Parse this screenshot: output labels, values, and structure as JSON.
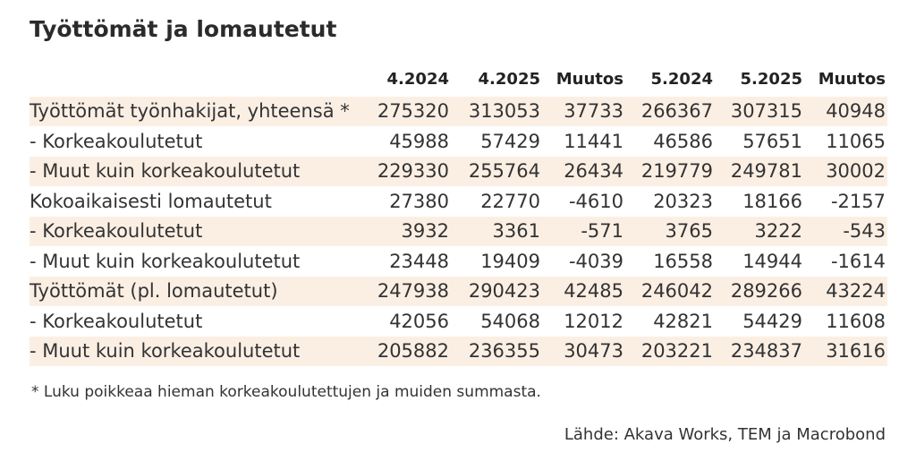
{
  "title": "Työttömät ja lomautetut",
  "table": {
    "columns": [
      "4.2024",
      "4.2025",
      "Muutos",
      "5.2024",
      "5.2025",
      "Muutos"
    ],
    "rows": [
      [
        "Työttömät työnhakijat, yhteensä *",
        275320,
        313053,
        37733,
        266367,
        307315,
        40948
      ],
      [
        "- Korkeakoulutetut",
        45988,
        57429,
        11441,
        46586,
        57651,
        11065
      ],
      [
        "- Muut kuin korkeakoulutetut",
        229330,
        255764,
        26434,
        219779,
        249781,
        30002
      ],
      [
        "Kokoaikaisesti lomautetut",
        27380,
        22770,
        -4610,
        20323,
        18166,
        -2157
      ],
      [
        "- Korkeakoulutetut",
        3932,
        3361,
        -571,
        3765,
        3222,
        -543
      ],
      [
        "- Muut kuin korkeakoulutetut",
        23448,
        19409,
        -4039,
        16558,
        14944,
        -1614
      ],
      [
        "Työttömät (pl. lomautetut)",
        247938,
        290423,
        42485,
        246042,
        289266,
        43224
      ],
      [
        "- Korkeakoulutetut",
        42056,
        54068,
        12012,
        42821,
        54429,
        11608
      ],
      [
        "- Muut kuin korkeakoulutetut",
        205882,
        236355,
        30473,
        203221,
        234837,
        31616
      ]
    ]
  },
  "footnote": "* Luku poikkeaa hieman korkeakoulutettujen ja muiden summasta.",
  "source": "Lähde: Akava Works, TEM ja Macrobond"
}
